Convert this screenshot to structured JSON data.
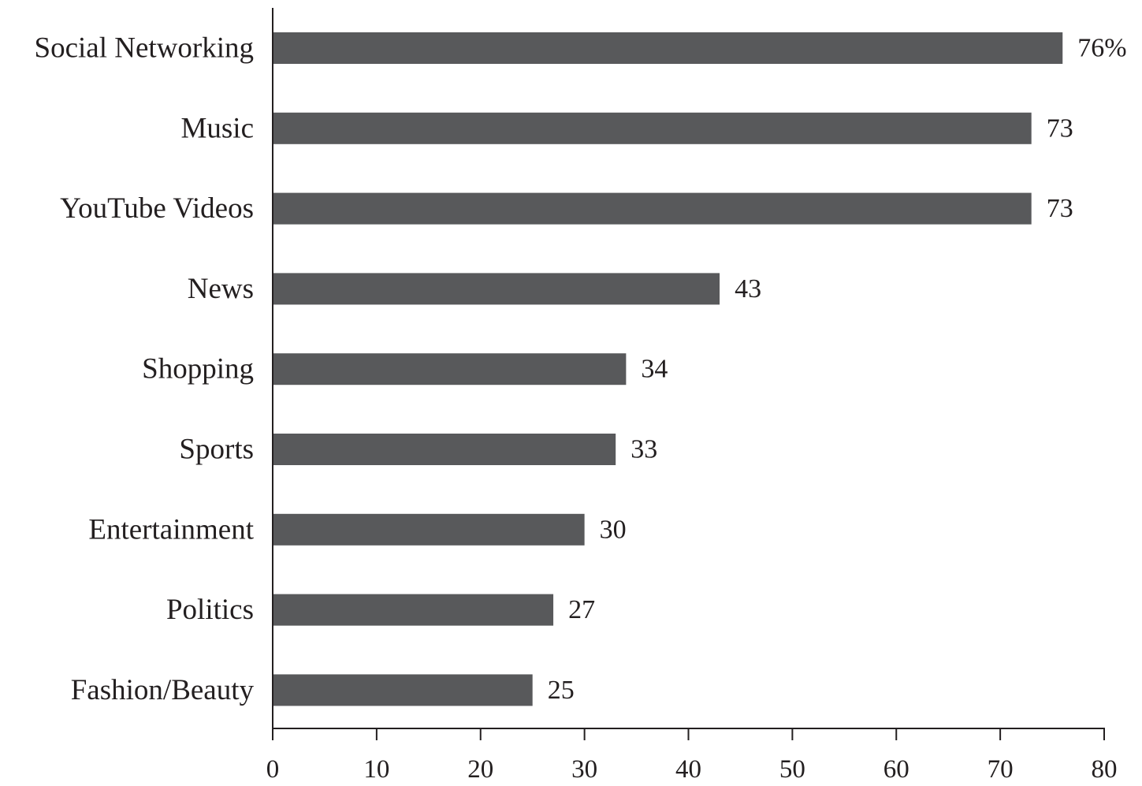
{
  "chart_data": {
    "type": "bar",
    "orientation": "horizontal",
    "categories": [
      "Social Networking",
      "Music",
      "YouTube Videos",
      "News",
      "Shopping",
      "Sports",
      "Entertainment",
      "Politics",
      "Fashion/Beauty"
    ],
    "values": [
      76,
      73,
      73,
      43,
      34,
      33,
      30,
      27,
      25
    ],
    "value_labels": [
      "76%",
      "73",
      "73",
      "43",
      "34",
      "33",
      "30",
      "27",
      "25"
    ],
    "x_ticks": [
      "0",
      "10",
      "20",
      "30",
      "40",
      "50",
      "60",
      "70",
      "80"
    ],
    "xlim": [
      0,
      80
    ],
    "grid": false,
    "legend": "none",
    "title": "",
    "xlabel": "",
    "ylabel": ""
  },
  "colors": {
    "bar": "#58595b",
    "axis": "#231f20",
    "text": "#231f20"
  }
}
